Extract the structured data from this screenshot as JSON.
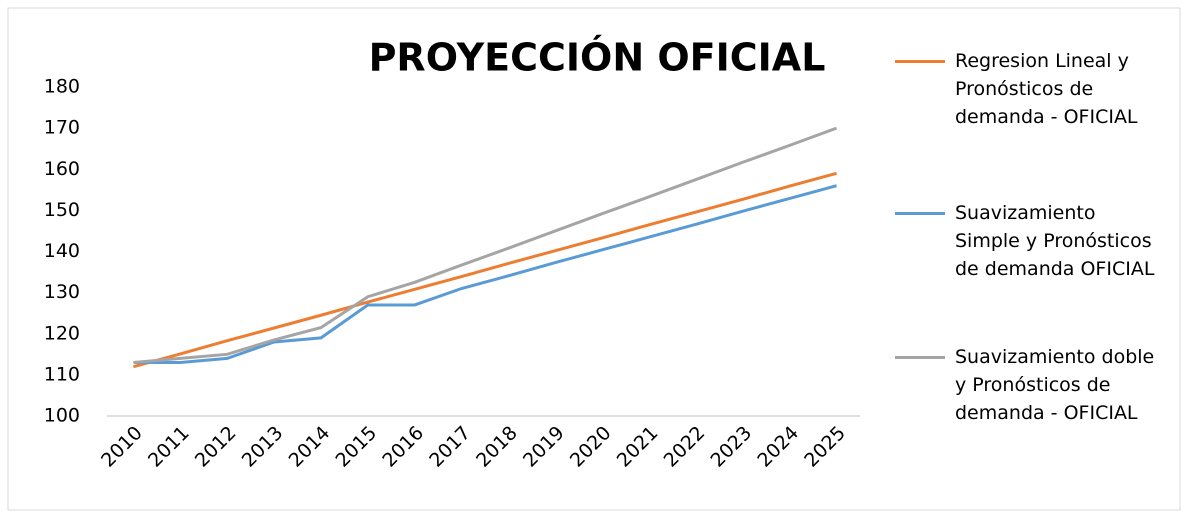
{
  "chart_data": {
    "type": "line",
    "title": "PROYECCIÓN OFICIAL",
    "categories": [
      "2010",
      "2011",
      "2012",
      "2013",
      "2014",
      "2015",
      "2016",
      "2017",
      "2018",
      "2019",
      "2020",
      "2021",
      "2022",
      "2023",
      "2024",
      "2025"
    ],
    "series": [
      {
        "name": "Regresion Lineal y Pronósticos de demanda - OFICIAL",
        "color": "#ED7D31",
        "values": [
          112,
          115.1,
          118.3,
          121.4,
          124.5,
          127.7,
          130.8,
          133.9,
          137.1,
          140.2,
          143.3,
          146.5,
          149.6,
          152.7,
          155.9,
          159
        ]
      },
      {
        "name": "Suavizamiento Simple y Pronósticos de demanda OFICIAL",
        "color": "#5B9BD5",
        "values": [
          113,
          113,
          114,
          118,
          119,
          127,
          127,
          131,
          134.1,
          137.3,
          140.4,
          143.5,
          146.6,
          149.8,
          152.9,
          156
        ]
      },
      {
        "name": "Suavizamiento doble y Pronósticos de demanda - OFICIAL",
        "color": "#A5A5A5",
        "values": [
          113,
          114,
          115,
          118.5,
          121.5,
          129,
          132.5,
          136.7,
          140.8,
          145,
          149.2,
          153.3,
          157.5,
          161.7,
          165.8,
          170
        ]
      }
    ],
    "ylim": [
      100,
      180
    ],
    "yticks": [
      100,
      110,
      120,
      130,
      140,
      150,
      160,
      170,
      180
    ],
    "grid": false,
    "legend": "right"
  }
}
